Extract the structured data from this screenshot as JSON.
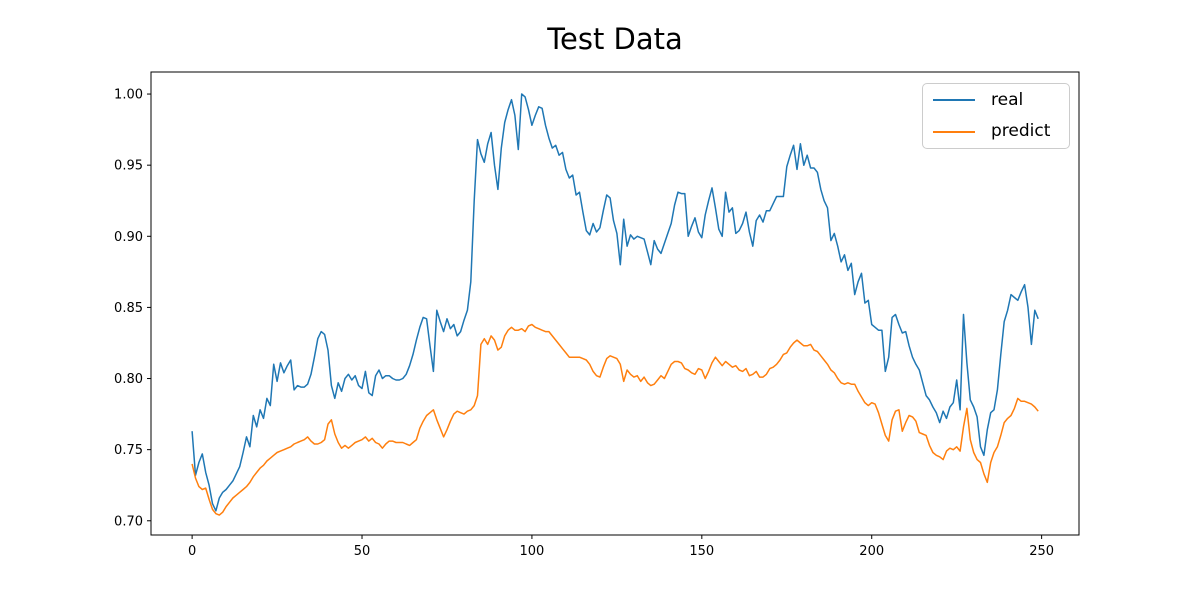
{
  "figure": {
    "title": "Test Data"
  },
  "legend": {
    "items": [
      {
        "label": "real",
        "color": "#1f77b4"
      },
      {
        "label": "predict",
        "color": "#ff7f0e"
      }
    ]
  },
  "chart_data": {
    "type": "line",
    "title": "Test Data",
    "xlabel": "",
    "ylabel": "",
    "grid": false,
    "legend_position": "upper right",
    "x_ticks": [
      0,
      50,
      100,
      150,
      200,
      250
    ],
    "y_ticks": [
      0.7,
      0.75,
      0.8,
      0.85,
      0.9,
      0.95,
      1.0
    ],
    "xlim": [
      -12.1,
      261.0
    ],
    "ylim": [
      0.69,
      1.0155
    ],
    "x_description": "sample index 0..249, one point per index",
    "series": [
      {
        "name": "real",
        "color": "#1f77b4",
        "values": [
          0.763,
          0.732,
          0.741,
          0.747,
          0.734,
          0.725,
          0.712,
          0.707,
          0.716,
          0.72,
          0.722,
          0.725,
          0.728,
          0.733,
          0.738,
          0.748,
          0.759,
          0.752,
          0.774,
          0.766,
          0.778,
          0.772,
          0.786,
          0.781,
          0.81,
          0.798,
          0.811,
          0.804,
          0.809,
          0.813,
          0.792,
          0.795,
          0.794,
          0.794,
          0.796,
          0.803,
          0.815,
          0.828,
          0.833,
          0.831,
          0.82,
          0.795,
          0.786,
          0.797,
          0.791,
          0.8,
          0.803,
          0.799,
          0.802,
          0.795,
          0.793,
          0.805,
          0.79,
          0.788,
          0.802,
          0.806,
          0.8,
          0.802,
          0.802,
          0.8,
          0.799,
          0.799,
          0.8,
          0.803,
          0.809,
          0.817,
          0.827,
          0.836,
          0.843,
          0.842,
          0.823,
          0.805,
          0.848,
          0.84,
          0.833,
          0.842,
          0.835,
          0.838,
          0.83,
          0.833,
          0.841,
          0.848,
          0.868,
          0.925,
          0.968,
          0.958,
          0.952,
          0.965,
          0.973,
          0.95,
          0.933,
          0.962,
          0.98,
          0.989,
          0.996,
          0.985,
          0.961,
          1.0,
          0.998,
          0.989,
          0.978,
          0.985,
          0.991,
          0.99,
          0.978,
          0.969,
          0.962,
          0.964,
          0.957,
          0.959,
          0.947,
          0.941,
          0.943,
          0.929,
          0.931,
          0.917,
          0.904,
          0.901,
          0.909,
          0.903,
          0.906,
          0.918,
          0.929,
          0.927,
          0.911,
          0.902,
          0.88,
          0.912,
          0.893,
          0.901,
          0.898,
          0.9,
          0.899,
          0.898,
          0.889,
          0.88,
          0.897,
          0.891,
          0.888,
          0.895,
          0.902,
          0.909,
          0.922,
          0.931,
          0.93,
          0.93,
          0.9,
          0.907,
          0.913,
          0.903,
          0.899,
          0.915,
          0.925,
          0.934,
          0.92,
          0.905,
          0.9,
          0.931,
          0.917,
          0.92,
          0.902,
          0.904,
          0.909,
          0.917,
          0.903,
          0.893,
          0.911,
          0.915,
          0.91,
          0.918,
          0.918,
          0.923,
          0.928,
          0.928,
          0.928,
          0.949,
          0.957,
          0.964,
          0.947,
          0.965,
          0.95,
          0.957,
          0.948,
          0.948,
          0.945,
          0.933,
          0.925,
          0.92,
          0.897,
          0.902,
          0.893,
          0.882,
          0.887,
          0.876,
          0.881,
          0.859,
          0.868,
          0.874,
          0.853,
          0.855,
          0.838,
          0.836,
          0.834,
          0.834,
          0.805,
          0.815,
          0.843,
          0.845,
          0.838,
          0.832,
          0.833,
          0.823,
          0.815,
          0.81,
          0.806,
          0.797,
          0.788,
          0.785,
          0.78,
          0.776,
          0.769,
          0.777,
          0.772,
          0.78,
          0.783,
          0.799,
          0.778,
          0.845,
          0.811,
          0.785,
          0.78,
          0.773,
          0.752,
          0.746,
          0.764,
          0.776,
          0.778,
          0.792,
          0.817,
          0.84,
          0.848,
          0.859,
          0.857,
          0.855,
          0.861,
          0.866,
          0.85,
          0.824,
          0.848,
          0.842
        ]
      },
      {
        "name": "predict",
        "color": "#ff7f0e",
        "values": [
          0.74,
          0.73,
          0.724,
          0.722,
          0.723,
          0.715,
          0.708,
          0.705,
          0.704,
          0.706,
          0.71,
          0.713,
          0.716,
          0.718,
          0.72,
          0.722,
          0.724,
          0.727,
          0.731,
          0.734,
          0.737,
          0.739,
          0.742,
          0.744,
          0.746,
          0.748,
          0.749,
          0.75,
          0.751,
          0.752,
          0.754,
          0.755,
          0.756,
          0.757,
          0.759,
          0.756,
          0.754,
          0.754,
          0.755,
          0.757,
          0.768,
          0.771,
          0.761,
          0.755,
          0.751,
          0.753,
          0.751,
          0.753,
          0.755,
          0.756,
          0.757,
          0.759,
          0.756,
          0.758,
          0.755,
          0.754,
          0.751,
          0.754,
          0.756,
          0.756,
          0.755,
          0.755,
          0.755,
          0.754,
          0.753,
          0.755,
          0.757,
          0.765,
          0.77,
          0.774,
          0.776,
          0.778,
          0.771,
          0.765,
          0.759,
          0.764,
          0.77,
          0.775,
          0.777,
          0.776,
          0.775,
          0.777,
          0.778,
          0.781,
          0.788,
          0.824,
          0.828,
          0.824,
          0.83,
          0.827,
          0.82,
          0.822,
          0.83,
          0.834,
          0.836,
          0.834,
          0.834,
          0.835,
          0.833,
          0.837,
          0.838,
          0.836,
          0.835,
          0.834,
          0.833,
          0.833,
          0.83,
          0.827,
          0.824,
          0.821,
          0.818,
          0.815,
          0.815,
          0.815,
          0.815,
          0.814,
          0.813,
          0.81,
          0.805,
          0.802,
          0.801,
          0.808,
          0.814,
          0.816,
          0.815,
          0.814,
          0.81,
          0.798,
          0.806,
          0.803,
          0.801,
          0.802,
          0.798,
          0.801,
          0.797,
          0.795,
          0.796,
          0.799,
          0.802,
          0.8,
          0.805,
          0.81,
          0.812,
          0.812,
          0.811,
          0.807,
          0.806,
          0.804,
          0.803,
          0.807,
          0.806,
          0.8,
          0.805,
          0.811,
          0.815,
          0.812,
          0.809,
          0.812,
          0.81,
          0.808,
          0.809,
          0.806,
          0.805,
          0.807,
          0.802,
          0.803,
          0.805,
          0.801,
          0.801,
          0.803,
          0.807,
          0.808,
          0.81,
          0.813,
          0.817,
          0.818,
          0.822,
          0.825,
          0.827,
          0.825,
          0.823,
          0.823,
          0.824,
          0.82,
          0.819,
          0.816,
          0.813,
          0.81,
          0.806,
          0.804,
          0.8,
          0.797,
          0.796,
          0.797,
          0.796,
          0.796,
          0.791,
          0.787,
          0.783,
          0.781,
          0.783,
          0.782,
          0.776,
          0.768,
          0.76,
          0.756,
          0.771,
          0.777,
          0.778,
          0.763,
          0.769,
          0.774,
          0.773,
          0.77,
          0.762,
          0.761,
          0.76,
          0.753,
          0.748,
          0.746,
          0.745,
          0.743,
          0.749,
          0.751,
          0.75,
          0.752,
          0.749,
          0.766,
          0.779,
          0.757,
          0.748,
          0.743,
          0.741,
          0.733,
          0.727,
          0.741,
          0.748,
          0.752,
          0.76,
          0.769,
          0.772,
          0.774,
          0.779,
          0.786,
          0.784,
          0.784,
          0.783,
          0.782,
          0.78,
          0.777
        ]
      }
    ]
  }
}
